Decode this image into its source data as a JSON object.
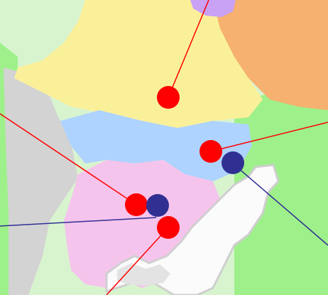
{
  "map": {
    "colors": {
      "land_green": "#9ef08a",
      "land_light": "#d8f4cf",
      "region_gray": "#d3d3d3",
      "region_yellow": "#fbf09a",
      "region_orange": "#f6b06f",
      "region_blue": "#aed3ff",
      "region_pink": "#f5c4ec",
      "region_purple": "#c9a2f6",
      "marker_red": "#ff0000",
      "marker_navy": "#303093",
      "leader_red": "#ff0000",
      "leader_navy": "#303093"
    },
    "regions": [
      {
        "name": "yellow-region",
        "color": "region_yellow"
      },
      {
        "name": "orange-region",
        "color": "region_orange"
      },
      {
        "name": "blue-region",
        "color": "region_blue"
      },
      {
        "name": "pink-region",
        "color": "region_pink"
      },
      {
        "name": "gray-region",
        "color": "region_gray"
      },
      {
        "name": "purple-region",
        "color": "region_purple"
      }
    ],
    "markers": [
      {
        "name": "red-marker-top",
        "color": "marker_red"
      },
      {
        "name": "red-marker-right",
        "color": "marker_red"
      },
      {
        "name": "navy-marker-right",
        "color": "marker_navy"
      },
      {
        "name": "red-marker-left",
        "color": "marker_red"
      },
      {
        "name": "navy-marker-left",
        "color": "marker_navy"
      },
      {
        "name": "red-marker-bottom",
        "color": "marker_red"
      }
    ]
  }
}
